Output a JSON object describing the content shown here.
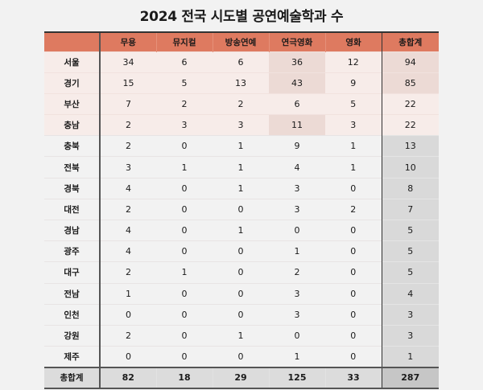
{
  "title": "2024 전국 시도별 공연예술학과 수",
  "colors": {
    "header_bg": "#de7a60",
    "top_rows_bg": "#f7ece9",
    "highlight_bg": "#ecdad5",
    "total_column_bg": "#d9d9d9",
    "footer_bg": "#dcdcdc",
    "grand_total_bg": "#c6c6c6"
  },
  "table": {
    "corner": "",
    "columns": [
      "무용",
      "뮤지컬",
      "방송연예",
      "연극영화",
      "영화",
      "총합계"
    ],
    "rows": [
      {
        "region": "서울",
        "values": [
          "34",
          "6",
          "6",
          "36",
          "12",
          "94"
        ]
      },
      {
        "region": "경기",
        "values": [
          "15",
          "5",
          "13",
          "43",
          "9",
          "85"
        ]
      },
      {
        "region": "부산",
        "values": [
          "7",
          "2",
          "2",
          "6",
          "5",
          "22"
        ]
      },
      {
        "region": "충남",
        "values": [
          "2",
          "3",
          "3",
          "11",
          "3",
          "22"
        ]
      },
      {
        "region": "충북",
        "values": [
          "2",
          "0",
          "1",
          "9",
          "1",
          "13"
        ]
      },
      {
        "region": "전북",
        "values": [
          "3",
          "1",
          "1",
          "4",
          "1",
          "10"
        ]
      },
      {
        "region": "경북",
        "values": [
          "4",
          "0",
          "1",
          "3",
          "0",
          "8"
        ]
      },
      {
        "region": "대전",
        "values": [
          "2",
          "0",
          "0",
          "3",
          "2",
          "7"
        ]
      },
      {
        "region": "경남",
        "values": [
          "4",
          "0",
          "1",
          "0",
          "0",
          "5"
        ]
      },
      {
        "region": "광주",
        "values": [
          "4",
          "0",
          "0",
          "1",
          "0",
          "5"
        ]
      },
      {
        "region": "대구",
        "values": [
          "2",
          "1",
          "0",
          "2",
          "0",
          "5"
        ]
      },
      {
        "region": "전남",
        "values": [
          "1",
          "0",
          "0",
          "3",
          "0",
          "4"
        ]
      },
      {
        "region": "인천",
        "values": [
          "0",
          "0",
          "0",
          "3",
          "0",
          "3"
        ]
      },
      {
        "region": "강원",
        "values": [
          "2",
          "0",
          "1",
          "0",
          "0",
          "3"
        ]
      },
      {
        "region": "제주",
        "values": [
          "0",
          "0",
          "0",
          "1",
          "0",
          "1"
        ]
      }
    ],
    "footer": {
      "label": "총합계",
      "values": [
        "82",
        "18",
        "29",
        "125",
        "33",
        "287"
      ]
    }
  },
  "chart_data": {
    "type": "table",
    "title": "2024 전국 시도별 공연예술학과 수",
    "categories": [
      "서울",
      "경기",
      "부산",
      "충남",
      "충북",
      "전북",
      "경북",
      "대전",
      "경남",
      "광주",
      "대구",
      "전남",
      "인천",
      "강원",
      "제주"
    ],
    "series": [
      {
        "name": "무용",
        "values": [
          34,
          15,
          7,
          2,
          2,
          3,
          4,
          2,
          4,
          4,
          2,
          1,
          0,
          2,
          0
        ]
      },
      {
        "name": "뮤지컬",
        "values": [
          6,
          5,
          2,
          3,
          0,
          1,
          0,
          0,
          0,
          0,
          1,
          0,
          0,
          0,
          0
        ]
      },
      {
        "name": "방송연예",
        "values": [
          6,
          13,
          2,
          3,
          1,
          1,
          1,
          0,
          1,
          0,
          0,
          0,
          0,
          1,
          0
        ]
      },
      {
        "name": "연극영화",
        "values": [
          36,
          43,
          6,
          11,
          9,
          4,
          3,
          3,
          0,
          1,
          2,
          3,
          3,
          0,
          1
        ]
      },
      {
        "name": "영화",
        "values": [
          12,
          9,
          5,
          3,
          1,
          1,
          0,
          2,
          0,
          0,
          0,
          0,
          0,
          0,
          0
        ]
      },
      {
        "name": "총합계",
        "values": [
          94,
          85,
          22,
          22,
          13,
          10,
          8,
          7,
          5,
          5,
          5,
          4,
          3,
          3,
          1
        ]
      }
    ],
    "totals": {
      "label": "총합계",
      "values": [
        82,
        18,
        29,
        125,
        33,
        287
      ]
    },
    "highlighted_cells": [
      {
        "region": "서울",
        "column": "연극영화"
      },
      {
        "region": "경기",
        "column": "연극영화"
      },
      {
        "region": "충남",
        "column": "연극영화"
      },
      {
        "region": "서울",
        "column": "총합계"
      },
      {
        "region": "경기",
        "column": "총합계"
      }
    ]
  }
}
